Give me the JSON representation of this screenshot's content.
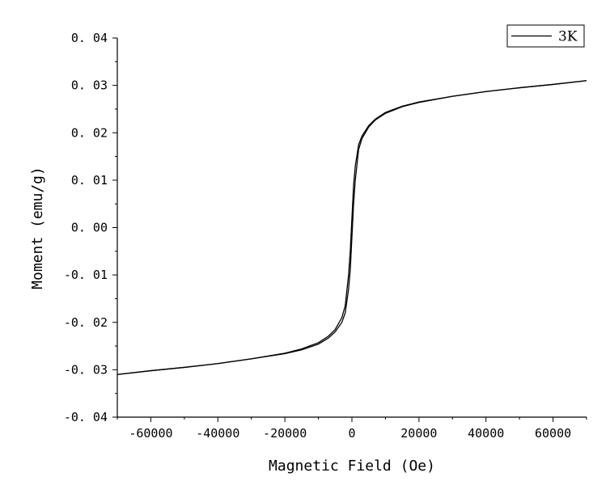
{
  "chart_data": {
    "type": "line",
    "xlabel": "Magnetic Field (Oe)",
    "ylabel": "Moment (emu/g)",
    "xlim": [
      -70000,
      70000
    ],
    "ylim": [
      -0.04,
      0.04
    ],
    "x_ticks": [
      -60000,
      -40000,
      -20000,
      0,
      20000,
      40000,
      60000
    ],
    "x_tick_labels": [
      "-60000",
      "-40000",
      "-20000",
      "0",
      "20000",
      "40000",
      "60000"
    ],
    "y_ticks": [
      -0.04,
      -0.03,
      -0.02,
      -0.01,
      0.0,
      0.01,
      0.02,
      0.03,
      0.04
    ],
    "y_tick_labels": [
      "-0. 04",
      "-0. 03",
      "-0. 02",
      "-0. 01",
      "0. 00",
      "0. 01",
      "0. 02",
      "0. 03",
      "0. 04"
    ],
    "legend": {
      "position": "top-right",
      "entries": [
        "3K"
      ]
    },
    "grid": false,
    "line_color": "#000000",
    "series": [
      {
        "name": "3K",
        "branch": "descending",
        "x": [
          70000,
          60000,
          50000,
          40000,
          30000,
          20000,
          15000,
          10000,
          7000,
          5000,
          3000,
          2000,
          1000,
          500,
          0,
          -500,
          -1000,
          -2000,
          -3000,
          -5000,
          -7000,
          -10000,
          -15000,
          -20000,
          -30000,
          -40000,
          -50000,
          -60000,
          -70000
        ],
        "y": [
          0.031,
          0.0302,
          0.0295,
          0.0287,
          0.0277,
          0.0265,
          0.0256,
          0.0243,
          0.0229,
          0.0215,
          0.0193,
          0.0175,
          0.013,
          0.009,
          0.002,
          -0.005,
          -0.01,
          -0.0165,
          -0.019,
          -0.0215,
          -0.0229,
          -0.0243,
          -0.0256,
          -0.0265,
          -0.0277,
          -0.0287,
          -0.0295,
          -0.0302,
          -0.031
        ]
      },
      {
        "name": "3K",
        "branch": "ascending",
        "x": [
          -70000,
          -60000,
          -50000,
          -40000,
          -30000,
          -20000,
          -15000,
          -10000,
          -7000,
          -5000,
          -3000,
          -2000,
          -1000,
          -500,
          0,
          500,
          1000,
          2000,
          3000,
          5000,
          7000,
          10000,
          15000,
          20000,
          30000,
          40000,
          50000,
          60000,
          70000
        ],
        "y": [
          -0.031,
          -0.0302,
          -0.0295,
          -0.0287,
          -0.0277,
          -0.0266,
          -0.0258,
          -0.0246,
          -0.0233,
          -0.022,
          -0.02,
          -0.018,
          -0.013,
          -0.009,
          -0.002,
          0.005,
          0.01,
          0.0165,
          0.0188,
          0.0212,
          0.0227,
          0.0241,
          0.0255,
          0.0264,
          0.0277,
          0.0287,
          0.0295,
          0.0302,
          0.031
        ]
      }
    ]
  }
}
